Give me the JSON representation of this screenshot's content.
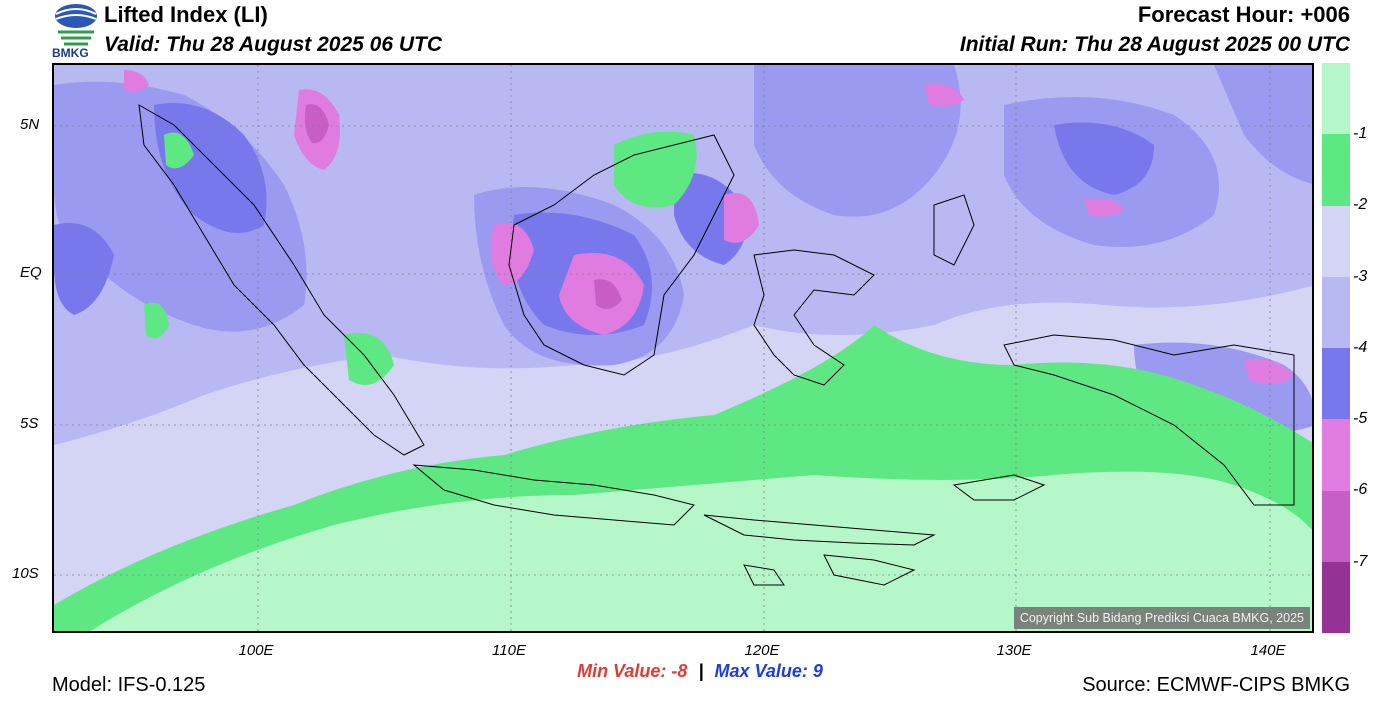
{
  "header": {
    "logo_text": "BMKG",
    "title": "Lifted Index (LI)",
    "valid": "Valid: Thu 28 August 2025 06 UTC",
    "forecast_hour": "Forecast Hour: +006",
    "initial_run": "Initial Run: Thu 28 August 2025 00 UTC"
  },
  "map": {
    "lat_labels": [
      "5N",
      "EQ",
      "5S",
      "10S"
    ],
    "lon_labels": [
      "100E",
      "110E",
      "120E",
      "130E",
      "140E"
    ],
    "copyright": "Copyright Sub Bidang Prediksi Cuaca BMKG, 2025",
    "colors": {
      "ocean_base": "#d4d4f5",
      "light_purple": "#b8b8f2",
      "mid_purple": "#9a9af0",
      "dark_purple": "#7878ec",
      "pink": "#e07ce0",
      "magenta": "#c65ec6",
      "green": "#5ee883",
      "light_green": "#b6f7c9"
    }
  },
  "colorbar": {
    "colors": [
      "#b6f7c9",
      "#5ee883",
      "#d4d4f5",
      "#b8b8f2",
      "#7878ec",
      "#e07ce0",
      "#c65ec6",
      "#953296"
    ],
    "labels": [
      "-1",
      "-2",
      "-3",
      "-4",
      "-5",
      "-6",
      "-7"
    ]
  },
  "footer": {
    "min_label": "Min Value:",
    "min_value": "-8",
    "separator": "|",
    "max_label": "Max Value:",
    "max_value": "9",
    "model": "Model: IFS-0.125",
    "source": "Source: ECMWF-CIPS BMKG"
  }
}
